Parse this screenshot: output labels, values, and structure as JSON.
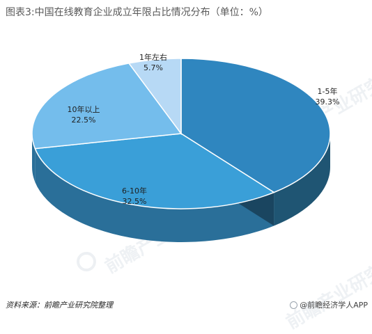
{
  "title": "图表3:中国在线教育企业成立年限占比情况分布（单位：%）",
  "source": "资料来源：前瞻产业研究院整理",
  "brand": "@前瞻经济学人APP",
  "watermark": "前瞻产业研究院",
  "colors": {
    "s1": "#2f86bf",
    "s2": "#3a9fd8",
    "s3": "#74bdec",
    "s4": "#b7d9f5",
    "side_dark": "#1f5573",
    "side_mid": "#2a6f99"
  },
  "chart_data": {
    "type": "pie",
    "style": "3d",
    "unit": "%",
    "slices": [
      {
        "label": "1-5年",
        "value": 39.3,
        "value_label": "39.3%"
      },
      {
        "label": "6-10年",
        "value": 32.5,
        "value_label": "32.5%"
      },
      {
        "label": "10年以上",
        "value": 22.5,
        "value_label": "22.5%"
      },
      {
        "label": "1年左右",
        "value": 5.7,
        "value_label": "5.7%"
      }
    ]
  }
}
